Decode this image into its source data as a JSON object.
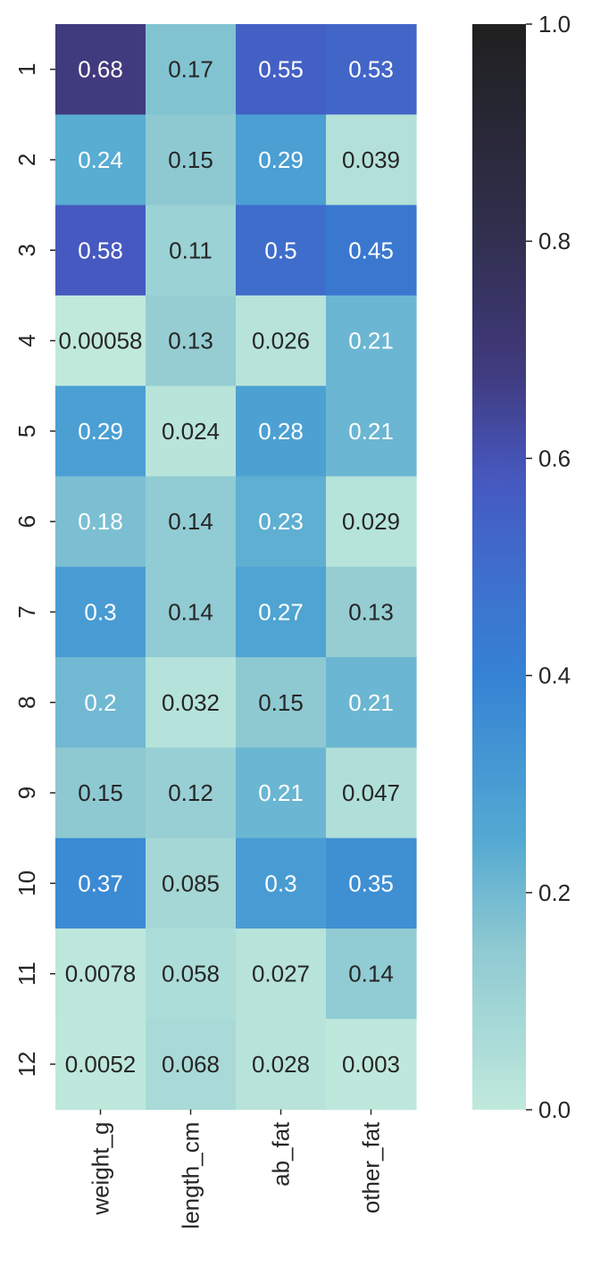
{
  "chart_data": {
    "type": "heatmap",
    "title": "",
    "xlabel": "",
    "ylabel": "",
    "columns": [
      "weight_g",
      "length_cm",
      "ab_fat",
      "other_fat"
    ],
    "rows": [
      "1",
      "2",
      "3",
      "4",
      "5",
      "6",
      "7",
      "8",
      "9",
      "10",
      "11",
      "12"
    ],
    "values": [
      [
        0.68,
        0.17,
        0.55,
        0.53
      ],
      [
        0.24,
        0.15,
        0.29,
        0.039
      ],
      [
        0.58,
        0.11,
        0.5,
        0.45
      ],
      [
        0.00058,
        0.13,
        0.026,
        0.21
      ],
      [
        0.29,
        0.024,
        0.28,
        0.21
      ],
      [
        0.18,
        0.14,
        0.23,
        0.029
      ],
      [
        0.3,
        0.14,
        0.27,
        0.13
      ],
      [
        0.2,
        0.032,
        0.15,
        0.21
      ],
      [
        0.15,
        0.12,
        0.21,
        0.047
      ],
      [
        0.37,
        0.085,
        0.3,
        0.35
      ],
      [
        0.0078,
        0.058,
        0.027,
        0.14
      ],
      [
        0.0052,
        0.068,
        0.028,
        0.003
      ]
    ],
    "labels": [
      [
        "0.68",
        "0.17",
        "0.55",
        "0.53"
      ],
      [
        "0.24",
        "0.15",
        "0.29",
        "0.039"
      ],
      [
        "0.58",
        "0.11",
        "0.5",
        "0.45"
      ],
      [
        "0.00058",
        "0.13",
        "0.026",
        "0.21"
      ],
      [
        "0.29",
        "0.024",
        "0.28",
        "0.21"
      ],
      [
        "0.18",
        "0.14",
        "0.23",
        "0.029"
      ],
      [
        "0.3",
        "0.14",
        "0.27",
        "0.13"
      ],
      [
        "0.2",
        "0.032",
        "0.15",
        "0.21"
      ],
      [
        "0.15",
        "0.12",
        "0.21",
        "0.047"
      ],
      [
        "0.37",
        "0.085",
        "0.3",
        "0.35"
      ],
      [
        "0.0078",
        "0.058",
        "0.027",
        "0.14"
      ],
      [
        "0.0052",
        "0.068",
        "0.028",
        "0.003"
      ]
    ],
    "colorbar": {
      "vmin": 0.0,
      "vmax": 1.0,
      "ticks": [
        0.0,
        0.2,
        0.4,
        0.6,
        0.8,
        1.0
      ],
      "tick_labels": [
        "0.0",
        "0.2",
        "0.4",
        "0.6",
        "0.8",
        "1.0"
      ]
    },
    "colormap_stops": [
      {
        "v": 0.0,
        "color": "#c0e9dc"
      },
      {
        "v": 0.15,
        "color": "#8ec9d2"
      },
      {
        "v": 0.25,
        "color": "#53a9d2"
      },
      {
        "v": 0.4,
        "color": "#3582d4"
      },
      {
        "v": 0.5,
        "color": "#3f6dcc"
      },
      {
        "v": 0.58,
        "color": "#4659c0"
      },
      {
        "v": 0.68,
        "color": "#403a7e"
      },
      {
        "v": 0.8,
        "color": "#313050"
      },
      {
        "v": 1.0,
        "color": "#202020"
      }
    ],
    "text_colors": {
      "light": "#ffffff",
      "dark": "#262626",
      "threshold": 0.18
    },
    "grid": false
  }
}
